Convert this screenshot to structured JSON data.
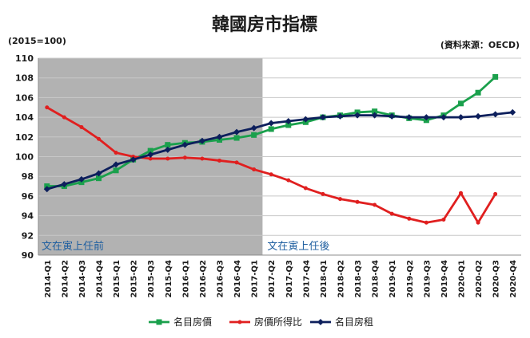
{
  "chart_data": {
    "type": "line",
    "title": "韓國房市指標",
    "unit_label": "(2015=100)",
    "source_label": "(資料來源：OECD)",
    "ylim": [
      90,
      110
    ],
    "yticks": [
      90,
      92,
      94,
      96,
      98,
      100,
      102,
      104,
      106,
      108,
      110
    ],
    "grid": true,
    "legend_position": "bottom",
    "categories": [
      "2014-Q1",
      "2014-Q2",
      "2014-Q3",
      "2014-Q4",
      "2015-Q1",
      "2015-Q2",
      "2015-Q3",
      "2015-Q4",
      "2016-Q1",
      "2016-Q2",
      "2016-Q3",
      "2016-Q4",
      "2017-Q1",
      "2017-Q2",
      "2017-Q3",
      "2017-Q4",
      "2018-Q1",
      "2018-Q2",
      "2018-Q3",
      "2018-Q4",
      "2019-Q1",
      "2019-Q2",
      "2019-Q3",
      "2019-Q4",
      "2020-Q1",
      "2020-Q2",
      "2020-Q3",
      "2020-Q4"
    ],
    "shaded_region": {
      "from": "2014-Q1",
      "to": "2017-Q1",
      "color": "#b2b2b2"
    },
    "annotations": [
      {
        "text": "文在寅上任前",
        "color": "#1f5fa0"
      },
      {
        "text": "文在寅上任後",
        "color": "#1f5fa0"
      }
    ],
    "series": [
      {
        "name": "名目房價",
        "color": "#1aa04c",
        "marker": "square",
        "values": [
          97.0,
          97.0,
          97.4,
          97.8,
          98.6,
          99.7,
          100.6,
          101.2,
          101.4,
          101.5,
          101.7,
          101.9,
          102.2,
          102.8,
          103.2,
          103.5,
          104.0,
          104.2,
          104.5,
          104.6,
          104.2,
          103.9,
          103.7,
          104.2,
          105.4,
          106.5,
          108.1,
          null
        ]
      },
      {
        "name": "房價所得比",
        "color": "#e01f1f",
        "marker": "circle",
        "values": [
          105.0,
          104.0,
          103.0,
          101.8,
          100.4,
          100.0,
          99.8,
          99.8,
          99.9,
          99.8,
          99.6,
          99.4,
          98.7,
          98.2,
          97.6,
          96.8,
          96.2,
          95.7,
          95.4,
          95.1,
          94.2,
          93.7,
          93.3,
          93.6,
          96.3,
          93.3,
          96.2,
          null
        ]
      },
      {
        "name": "名目房租",
        "color": "#0d1f5c",
        "marker": "diamond",
        "values": [
          96.7,
          97.2,
          97.7,
          98.3,
          99.2,
          99.7,
          100.2,
          100.7,
          101.2,
          101.6,
          102.0,
          102.5,
          102.9,
          103.4,
          103.6,
          103.8,
          104.0,
          104.1,
          104.2,
          104.2,
          104.1,
          104.0,
          104.0,
          104.0,
          104.0,
          104.1,
          104.3,
          104.5
        ]
      }
    ]
  }
}
